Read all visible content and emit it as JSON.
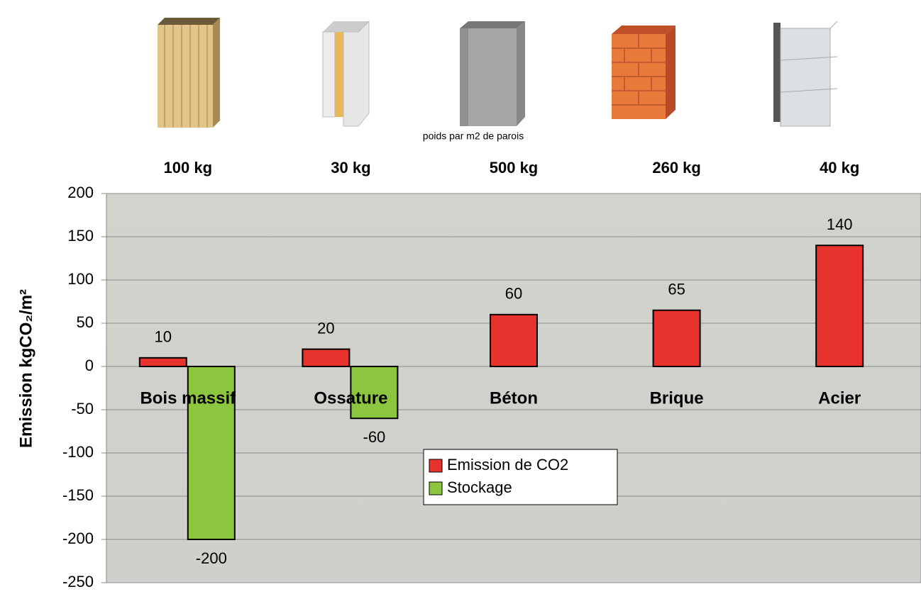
{
  "chart_data": {
    "type": "bar",
    "categories": [
      "Bois massif",
      "Ossature",
      "Béton",
      "Brique",
      "Acier"
    ],
    "weights": [
      "100 kg",
      "30 kg",
      "500 kg",
      "260 kg",
      "40 kg"
    ],
    "weights_caption": "poids par m2 de parois",
    "y_label": "Emission kgCO₂/m²",
    "series": [
      {
        "name": "Emission de CO2",
        "color": "#e8322d",
        "values": [
          10,
          20,
          60,
          65,
          140
        ]
      },
      {
        "name": "Stockage",
        "color": "#8cc63f",
        "values": [
          -200,
          -60,
          null,
          null,
          null
        ]
      }
    ],
    "ylim": [
      -250,
      200
    ],
    "yticks": [
      -250,
      -200,
      -150,
      -100,
      -50,
      0,
      50,
      100,
      150,
      200
    ],
    "grid": true
  }
}
